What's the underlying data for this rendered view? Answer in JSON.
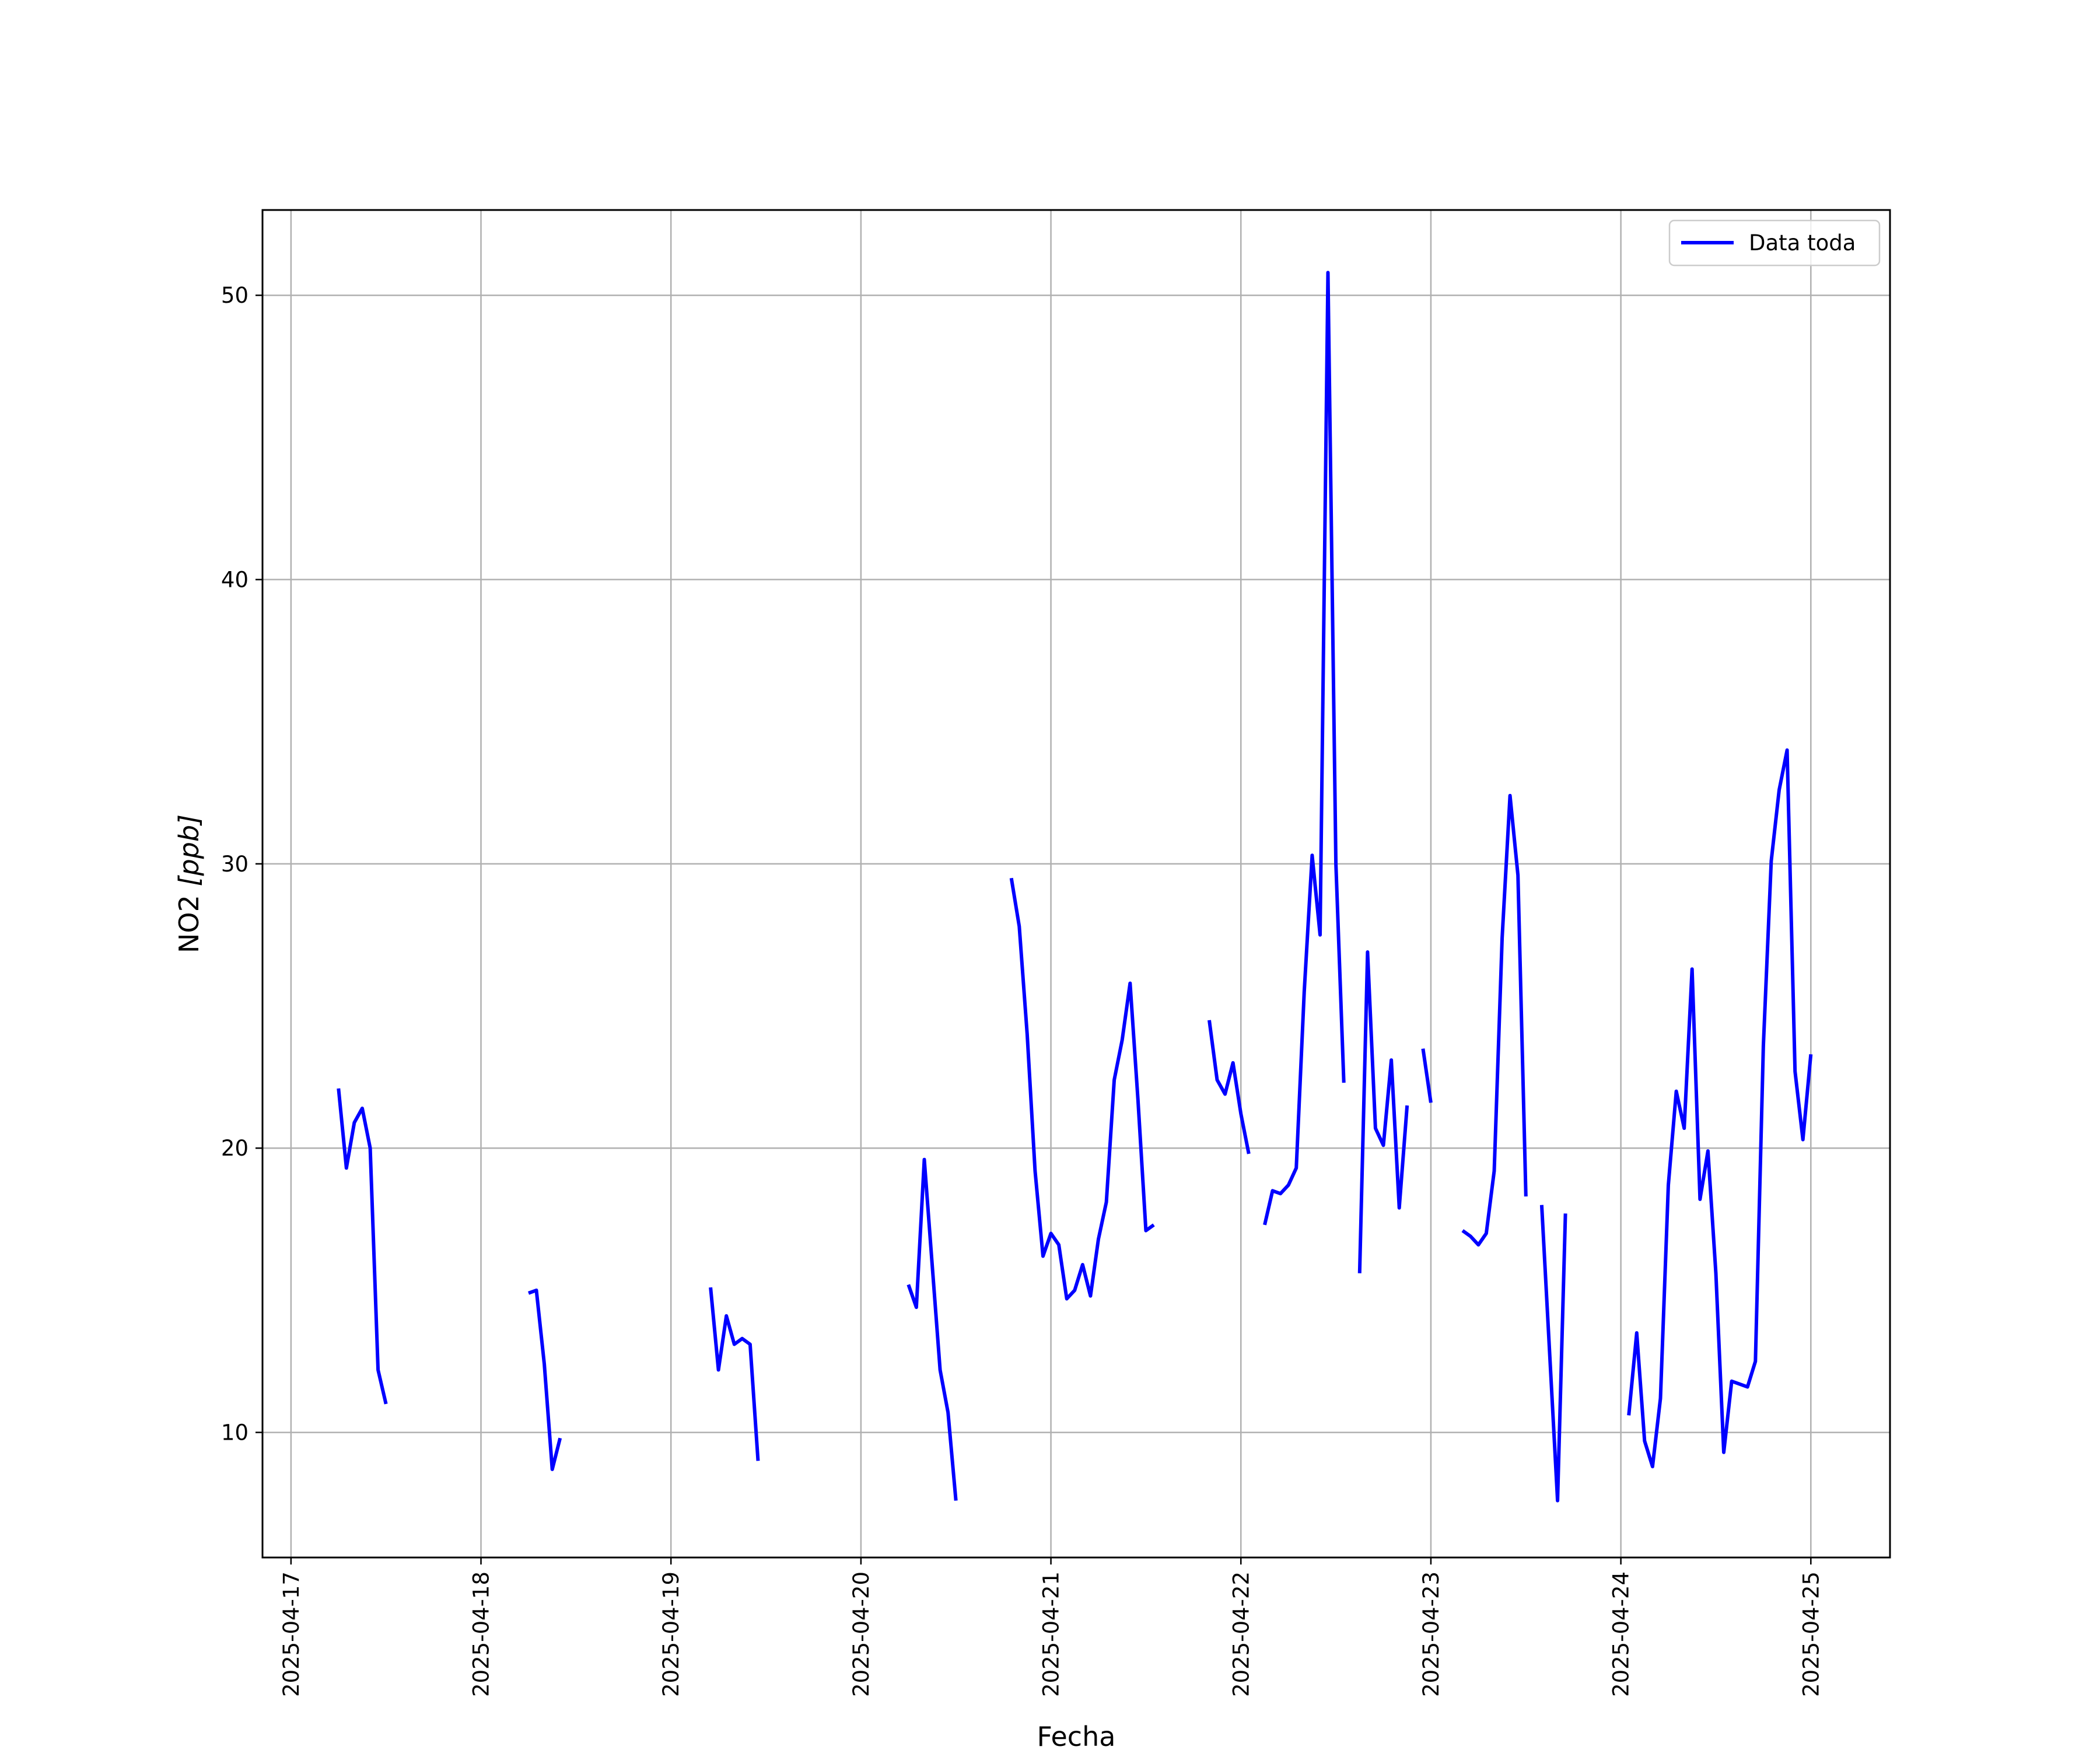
{
  "chart_data": {
    "type": "line",
    "xlabel": "Fecha",
    "ylabel_main": "NO2 ",
    "ylabel_unit": "[ppb]",
    "x_type": "datetime",
    "xlim": [
      "2025-04-16T20:24",
      "2025-04-25T10:00"
    ],
    "ylim": [
      5.6,
      53.0
    ],
    "grid": true,
    "legend_position": "top-right",
    "x_ticks": [
      "2025-04-17",
      "2025-04-18",
      "2025-04-19",
      "2025-04-20",
      "2025-04-21",
      "2025-04-22",
      "2025-04-23",
      "2025-04-24",
      "2025-04-25"
    ],
    "y_ticks": [
      10,
      20,
      30,
      40,
      50
    ],
    "series": [
      {
        "name": "Data toda",
        "color": "#0000ff",
        "segments": [
          [
            [
              "2025-04-17T06:00",
              22.1
            ],
            [
              "2025-04-17T07:00",
              19.3
            ],
            [
              "2025-04-17T08:00",
              20.9
            ],
            [
              "2025-04-17T09:00",
              21.4
            ],
            [
              "2025-04-17T10:00",
              20.0
            ],
            [
              "2025-04-17T11:00",
              12.2
            ],
            [
              "2025-04-17T12:00",
              11.0
            ]
          ],
          [
            [
              "2025-04-18T06:00",
              14.9
            ],
            [
              "2025-04-18T07:00",
              15.0
            ],
            [
              "2025-04-18T08:00",
              12.4
            ],
            [
              "2025-04-18T09:00",
              8.7
            ],
            [
              "2025-04-18T10:00",
              9.8
            ]
          ],
          [
            [
              "2025-04-19T05:00",
              15.1
            ],
            [
              "2025-04-19T06:00",
              12.2
            ],
            [
              "2025-04-19T07:00",
              14.1
            ],
            [
              "2025-04-19T08:00",
              13.1
            ],
            [
              "2025-04-19T09:00",
              13.3
            ],
            [
              "2025-04-19T10:00",
              13.1
            ],
            [
              "2025-04-19T11:00",
              9.0
            ]
          ],
          [
            [
              "2025-04-20T06:00",
              15.2
            ],
            [
              "2025-04-20T07:00",
              14.4
            ],
            [
              "2025-04-20T08:00",
              19.6
            ],
            [
              "2025-04-20T09:00",
              15.9
            ],
            [
              "2025-04-20T10:00",
              12.2
            ],
            [
              "2025-04-20T11:00",
              10.7
            ],
            [
              "2025-04-20T12:00",
              7.6
            ]
          ],
          [
            [
              "2025-04-20T19:00",
              29.5
            ],
            [
              "2025-04-20T20:00",
              27.8
            ],
            [
              "2025-04-20T21:00",
              24.0
            ],
            [
              "2025-04-20T22:00",
              19.2
            ],
            [
              "2025-04-20T23:00",
              16.2
            ],
            [
              "2025-04-21T00:00",
              17.0
            ],
            [
              "2025-04-21T01:00",
              16.6
            ],
            [
              "2025-04-21T02:00",
              14.7
            ],
            [
              "2025-04-21T03:00",
              15.0
            ],
            [
              "2025-04-21T04:00",
              15.9
            ],
            [
              "2025-04-21T05:00",
              14.8
            ],
            [
              "2025-04-21T06:00",
              16.8
            ],
            [
              "2025-04-21T07:00",
              18.1
            ],
            [
              "2025-04-21T08:00",
              22.4
            ],
            [
              "2025-04-21T09:00",
              23.8
            ],
            [
              "2025-04-21T10:00",
              25.8
            ],
            [
              "2025-04-21T11:00",
              21.7
            ],
            [
              "2025-04-21T12:00",
              17.1
            ],
            [
              "2025-04-21T13:00",
              17.3
            ]
          ],
          [
            [
              "2025-04-21T20:00",
              24.5
            ],
            [
              "2025-04-21T21:00",
              22.4
            ],
            [
              "2025-04-21T22:00",
              21.9
            ],
            [
              "2025-04-21T23:00",
              23.0
            ],
            [
              "2025-04-22T00:00",
              21.2
            ],
            [
              "2025-04-22T01:00",
              19.8
            ]
          ],
          [
            [
              "2025-04-22T03:00",
              17.3
            ],
            [
              "2025-04-22T04:00",
              18.5
            ],
            [
              "2025-04-22T05:00",
              18.4
            ],
            [
              "2025-04-22T06:00",
              18.7
            ],
            [
              "2025-04-22T07:00",
              19.3
            ],
            [
              "2025-04-22T08:00",
              25.5
            ],
            [
              "2025-04-22T09:00",
              30.3
            ],
            [
              "2025-04-22T10:00",
              27.5
            ],
            [
              "2025-04-22T11:00",
              50.8
            ],
            [
              "2025-04-22T12:00",
              30.0
            ],
            [
              "2025-04-22T13:00",
              22.3
            ]
          ],
          [
            [
              "2025-04-22T15:00",
              15.6
            ],
            [
              "2025-04-22T16:00",
              26.9
            ],
            [
              "2025-04-22T17:00",
              20.7
            ],
            [
              "2025-04-22T18:00",
              20.1
            ],
            [
              "2025-04-22T19:00",
              23.1
            ],
            [
              "2025-04-22T20:00",
              17.9
            ],
            [
              "2025-04-22T21:00",
              21.5
            ]
          ],
          [
            [
              "2025-04-22T23:00",
              23.5
            ],
            [
              "2025-04-23T00:00",
              21.6
            ]
          ],
          [
            [
              "2025-04-23T04:00",
              17.1
            ],
            [
              "2025-04-23T05:00",
              16.9
            ],
            [
              "2025-04-23T06:00",
              16.6
            ],
            [
              "2025-04-23T07:00",
              17.0
            ],
            [
              "2025-04-23T08:00",
              19.2
            ],
            [
              "2025-04-23T09:00",
              27.4
            ],
            [
              "2025-04-23T10:00",
              32.4
            ],
            [
              "2025-04-23T11:00",
              29.6
            ],
            [
              "2025-04-23T12:00",
              18.3
            ]
          ],
          [
            [
              "2025-04-23T14:00",
              18.0
            ],
            [
              "2025-04-23T15:00",
              12.8
            ],
            [
              "2025-04-23T16:00",
              7.6
            ],
            [
              "2025-04-23T17:00",
              17.7
            ]
          ],
          [
            [
              "2025-04-24T01:00",
              10.6
            ],
            [
              "2025-04-24T02:00",
              13.5
            ],
            [
              "2025-04-24T03:00",
              9.7
            ],
            [
              "2025-04-24T04:00",
              8.8
            ],
            [
              "2025-04-24T05:00",
              11.2
            ],
            [
              "2025-04-24T06:00",
              18.7
            ],
            [
              "2025-04-24T07:00",
              22.0
            ],
            [
              "2025-04-24T08:00",
              20.7
            ],
            [
              "2025-04-24T09:00",
              26.3
            ],
            [
              "2025-04-24T10:00",
              18.2
            ],
            [
              "2025-04-24T11:00",
              19.9
            ],
            [
              "2025-04-24T12:00",
              15.6
            ],
            [
              "2025-04-24T13:00",
              9.3
            ],
            [
              "2025-04-24T14:00",
              11.8
            ],
            [
              "2025-04-24T15:00",
              11.7
            ],
            [
              "2025-04-24T16:00",
              11.6
            ],
            [
              "2025-04-24T17:00",
              12.5
            ],
            [
              "2025-04-24T18:00",
              23.6
            ],
            [
              "2025-04-24T19:00",
              30.1
            ],
            [
              "2025-04-24T20:00",
              32.6
            ],
            [
              "2025-04-24T21:00",
              34.0
            ],
            [
              "2025-04-24T22:00",
              22.7
            ],
            [
              "2025-04-24T23:00",
              20.3
            ],
            [
              "2025-04-25T00:00",
              23.3
            ]
          ]
        ]
      }
    ]
  }
}
